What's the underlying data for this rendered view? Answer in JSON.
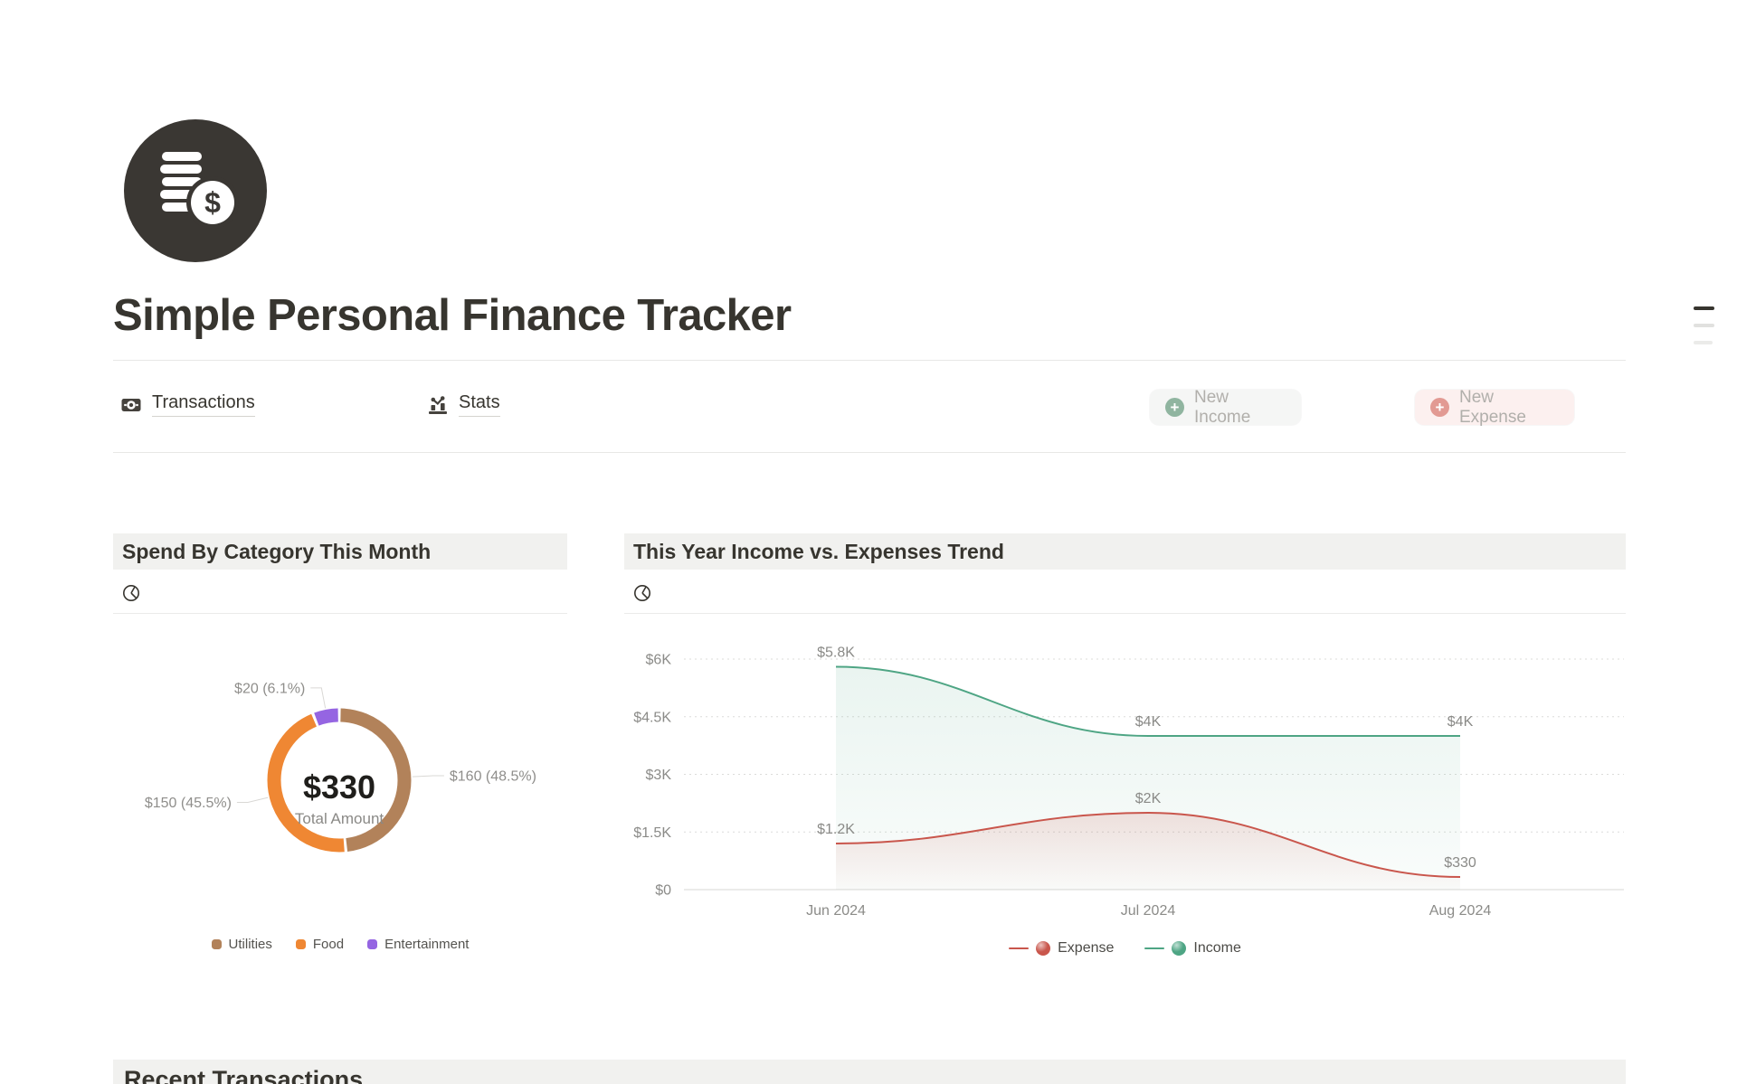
{
  "page": {
    "title": "Simple Personal Finance Tracker",
    "icon": "coins-dollar-icon"
  },
  "toolbar": {
    "tabs": [
      {
        "label": "Transactions",
        "icon": "banknote-icon"
      },
      {
        "label": "Stats",
        "icon": "bar-chart-icon"
      }
    ],
    "actions": [
      {
        "label": "New Income",
        "icon": "plus-circle-icon",
        "accent": "#90b5a0",
        "bg": "#f5f6f5"
      },
      {
        "label": "New Expense",
        "icon": "plus-circle-icon",
        "accent": "#e29a93",
        "bg": "#fcf0ef"
      }
    ]
  },
  "sections": {
    "donut": {
      "title": "Spend By Category This Month",
      "icon": "pie-chart-icon"
    },
    "trend": {
      "title": "This Year Income vs. Expenses Trend",
      "icon": "pie-chart-icon"
    },
    "recent": {
      "title": "Recent Transactions"
    }
  },
  "chart_data": [
    {
      "type": "pie",
      "title": "Spend By Category This Month",
      "donut": true,
      "categories": [
        "Utilities",
        "Food",
        "Entertainment"
      ],
      "values": [
        160,
        150,
        20
      ],
      "point_labels": [
        "$160 (48.5%)",
        "$150 (45.5%)",
        "$20 (6.1%)"
      ],
      "colors": [
        "#b2825a",
        "#ef8733",
        "#9565e2"
      ],
      "center_value": "$330",
      "center_label": "Total Amount",
      "legend_position": "bottom"
    },
    {
      "type": "line",
      "title": "This Year Income vs. Expenses Trend",
      "x": [
        "Jun 2024",
        "Jul 2024",
        "Aug 2024"
      ],
      "series": [
        {
          "name": "Expense",
          "color": "#c9564c",
          "values": [
            1200,
            2000,
            330
          ],
          "point_labels": [
            "$1.2K",
            "$2K",
            "$330"
          ]
        },
        {
          "name": "Income",
          "color": "#4ea584",
          "values": [
            5800,
            4000,
            4000
          ],
          "point_labels": [
            "$5.8K",
            "$4K",
            "$4K"
          ]
        }
      ],
      "ylim": [
        0,
        6000
      ],
      "yticks": [
        {
          "v": 0,
          "label": "$0"
        },
        {
          "v": 1500,
          "label": "$1.5K"
        },
        {
          "v": 3000,
          "label": "$3K"
        },
        {
          "v": 4500,
          "label": "$4.5K"
        },
        {
          "v": 6000,
          "label": "$6K"
        }
      ],
      "grid": "dotted",
      "smooth": true,
      "area": true,
      "legend_position": "bottom"
    }
  ]
}
